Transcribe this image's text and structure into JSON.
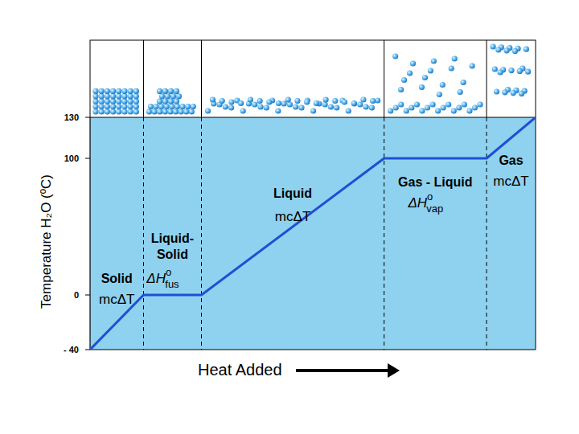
{
  "chart_data": {
    "type": "line",
    "x_label": "Heat Added",
    "y_label": "Temperature H₂O (ºC)",
    "x": [
      0,
      12,
      25,
      66,
      89,
      100
    ],
    "values": [
      -40,
      0,
      0,
      100,
      100,
      130
    ],
    "color": "#1f4fd6",
    "xlim": [
      0,
      100
    ],
    "ylim": [
      -40,
      130
    ],
    "yticks": [
      {
        "value": -40,
        "label": "- 40"
      },
      0,
      100,
      130
    ],
    "grid": false,
    "tick_labels": "y",
    "regions": [
      {
        "lines": [
          "Solid"
        ],
        "formula": "mcΔT"
      },
      {
        "lines": [
          "Liquid-",
          "Solid"
        ],
        "formula": {
          "base": "ΔH",
          "sup": "o",
          "sub": "fus"
        }
      },
      {
        "lines": [
          "Liquid"
        ],
        "formula": "mcΔT"
      },
      {
        "lines": [
          "Gas - Liquid"
        ],
        "formula": {
          "base": "ΔH",
          "sup": "o",
          "sub": "vap"
        }
      },
      {
        "lines": [
          "Gas"
        ],
        "formula": "mcΔT"
      }
    ]
  }
}
